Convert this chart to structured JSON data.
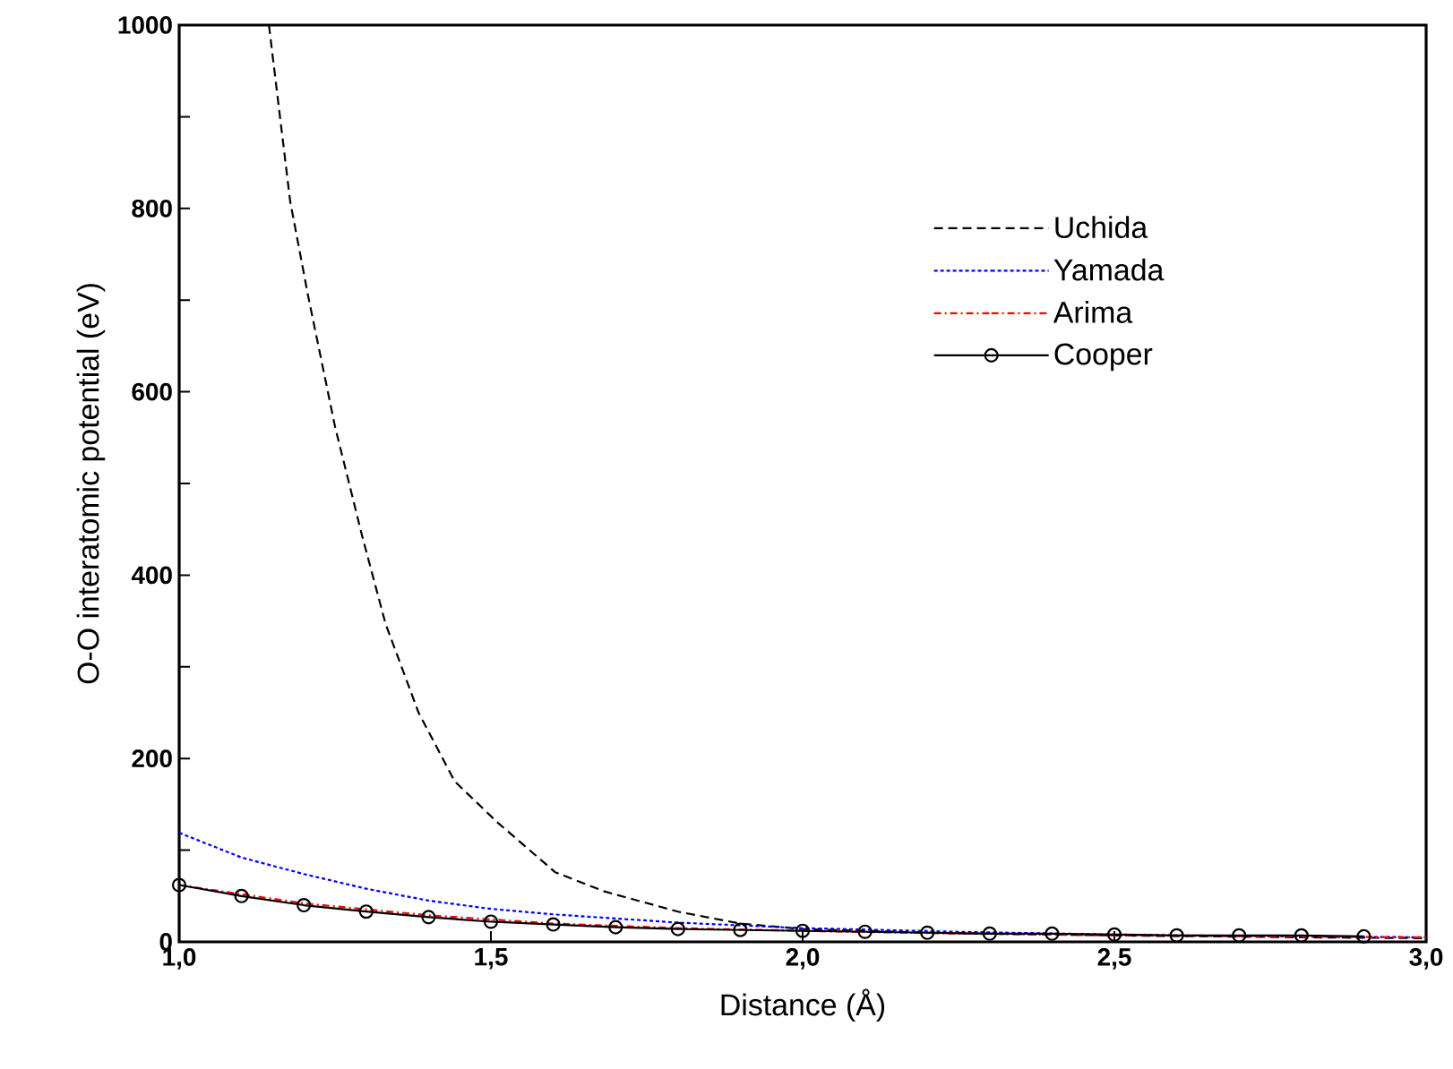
{
  "chart_data": {
    "type": "line",
    "xlabel": "Distance (Å)",
    "ylabel": "O-O interatomic potential (eV)",
    "xlim": [
      1.0,
      3.0
    ],
    "ylim": [
      0,
      1000
    ],
    "xticks": [
      {
        "value": 1.0,
        "label": "1,0"
      },
      {
        "value": 1.5,
        "label": "1,5"
      },
      {
        "value": 2.0,
        "label": "2,0"
      },
      {
        "value": 2.5,
        "label": "2,5"
      },
      {
        "value": 3.0,
        "label": "3,0"
      }
    ],
    "yticks": [
      0,
      {
        "value": 100,
        "label": null
      },
      200,
      {
        "value": 300,
        "label": null
      },
      400,
      {
        "value": 500,
        "label": null
      },
      600,
      {
        "value": 700,
        "label": null
      },
      800,
      {
        "value": 900,
        "label": null
      },
      1000
    ],
    "legend": "right",
    "grid": false,
    "series": [
      {
        "name": "Uchida",
        "color": "#000000",
        "line_style": "dashed",
        "marker": "none",
        "x": [
          1.144,
          1.178,
          1.207,
          1.25,
          1.293,
          1.331,
          1.384,
          1.442,
          1.511,
          1.603,
          1.682,
          1.8,
          1.9,
          2.0,
          2.2,
          2.5,
          2.8,
          3.0
        ],
        "values": [
          1000,
          808,
          704,
          562,
          444,
          347,
          250,
          175,
          130,
          76,
          55,
          33,
          20,
          14,
          10,
          7,
          5,
          4
        ]
      },
      {
        "name": "Yamada",
        "color": "#0000ff",
        "line_style": "dotted",
        "marker": "none",
        "x": [
          1.0,
          1.1,
          1.2,
          1.3,
          1.4,
          1.5,
          1.6,
          1.8,
          2.0,
          2.25,
          2.5,
          2.75,
          3.0
        ],
        "values": [
          119,
          92,
          74,
          58,
          45,
          36,
          30,
          21,
          15,
          11,
          8,
          6,
          5
        ]
      },
      {
        "name": "Arima",
        "color": "#ff0000",
        "line_style": "dashdot",
        "marker": "none",
        "x": [
          1.0,
          1.2,
          1.4,
          1.6,
          1.8,
          2.0,
          2.25,
          2.5,
          2.75,
          3.0
        ],
        "values": [
          62,
          42,
          29,
          20,
          15,
          12,
          9,
          7,
          6,
          5
        ]
      },
      {
        "name": "Cooper",
        "color": "#000000",
        "line_style": "solid",
        "marker": "circle",
        "x": [
          1.0,
          1.1,
          1.2,
          1.3,
          1.4,
          1.5,
          1.6,
          1.7,
          1.8,
          1.9,
          2.0,
          2.1,
          2.2,
          2.3,
          2.4,
          2.5,
          2.6,
          2.7,
          2.8,
          2.9
        ],
        "values": [
          62,
          50,
          40,
          33,
          27,
          22,
          19,
          16,
          14,
          13,
          12,
          11,
          10,
          9,
          9,
          8,
          7,
          7,
          7,
          6
        ]
      }
    ]
  }
}
